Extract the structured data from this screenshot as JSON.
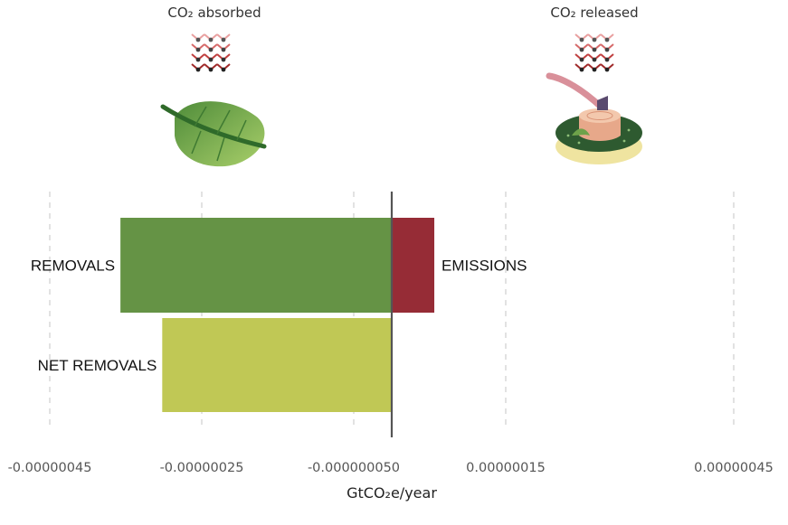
{
  "chart_data": {
    "type": "bar",
    "orientation": "horizontal",
    "xlabel": "GtCO₂e/year",
    "ticks": [
      {
        "value": -4.5e-07,
        "label": "-0.00000045"
      },
      {
        "value": -2.5e-07,
        "label": "-0.00000025"
      },
      {
        "value": -5e-08,
        "label": "-0.000000050"
      },
      {
        "value": 1.5e-07,
        "label": "0.00000015"
      },
      {
        "value": 4.5e-07,
        "label": "0.00000045"
      }
    ],
    "zero_line": 0,
    "bars": [
      {
        "label": "REMOVALS",
        "row": 0,
        "start": -3.57e-07,
        "end": 0,
        "color": "#659345"
      },
      {
        "label": "EMISSIONS",
        "row": 0,
        "start": 0,
        "end": 5.6e-08,
        "color": "#962c36"
      },
      {
        "label": "NET REMOVALS",
        "row": 1,
        "start": -3.02e-07,
        "end": 0,
        "color": "#c0c855"
      }
    ],
    "grid": true,
    "annotations": {
      "left_header": "CO₂ absorbed",
      "right_header": "CO₂ released",
      "left_icon": "leaf-with-co2-molecules-icon",
      "right_icon": "tree-stump-with-axe-and-co2-molecules-icon"
    }
  }
}
